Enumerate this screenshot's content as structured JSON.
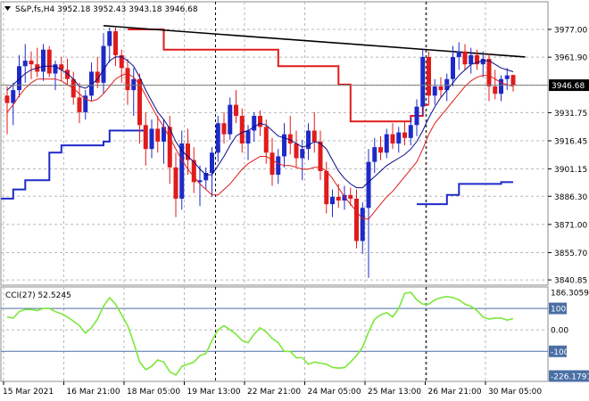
{
  "window": {
    "symbol_line": "S&P,fs,H4  3952.18 3952.43 3943.18 3946.68",
    "dropdown_icon": "triangle-down-icon"
  },
  "colors": {
    "bull": "#1e2ac8",
    "bear": "#e01b1b",
    "doji": "#12a512",
    "ma_fast": "#0a0a8c",
    "ma_slow": "#e01b1b",
    "step_red": "#e01b1b",
    "step_blue": "#1e2ac8",
    "trendline": "#000000",
    "cci": "#7be83a",
    "grid": "#b8b8b8",
    "price_label_bg": "#000000"
  },
  "chart_data": [
    {
      "type": "candlestick",
      "title": "S&P,fs,H4",
      "ohlc_readout": {
        "open": 3952.18,
        "high": 3952.43,
        "low": 3943.18,
        "close": 3946.68
      },
      "current_price": 3946.68,
      "ylim": [
        3838.0,
        3992.0
      ],
      "y_ticks": [
        3977.0,
        3961.9,
        3946.68,
        3931.75,
        3916.45,
        3901.15,
        3886.3,
        3871.0,
        3855.7,
        3840.85
      ],
      "y_tick_labels": [
        "3977.00",
        "3961.90",
        "3946.68",
        "3931.75",
        "3916.45",
        "3901.15",
        "3886.30",
        "3871.00",
        "3855.70",
        "3840.85"
      ],
      "grid": true,
      "x_labels": [
        "15 Mar 2021",
        "16 Mar 21:00",
        "18 Mar 05:00",
        "19 Mar 13:00",
        "22 Mar 21:00",
        "24 Mar 05:00",
        "25 Mar 13:00",
        "26 Mar 21:00",
        "30 Mar 05:00"
      ],
      "x_label_bars": [
        0,
        10,
        20,
        30,
        40,
        50,
        60,
        70,
        80
      ],
      "separator_bars": [
        34,
        69
      ],
      "candles": [
        [
          3941,
          3946,
          3920,
          3937
        ],
        [
          3937,
          3948,
          3925,
          3944
        ],
        [
          3944,
          3963,
          3940,
          3957
        ],
        [
          3957,
          3969,
          3948,
          3960
        ],
        [
          3960,
          3965,
          3950,
          3958
        ],
        [
          3958,
          3967,
          3951,
          3954
        ],
        [
          3954,
          3969,
          3949,
          3966
        ],
        [
          3966,
          3968,
          3951,
          3953
        ],
        [
          3953,
          3960,
          3944,
          3958
        ],
        [
          3958,
          3962,
          3949,
          3955
        ],
        [
          3955,
          3961,
          3947,
          3950
        ],
        [
          3950,
          3954,
          3936,
          3940
        ],
        [
          3940,
          3948,
          3926,
          3932
        ],
        [
          3932,
          3944,
          3928,
          3941
        ],
        [
          3941,
          3959,
          3938,
          3954
        ],
        [
          3954,
          3962,
          3945,
          3948
        ],
        [
          3948,
          3975,
          3942,
          3968
        ],
        [
          3968,
          3978,
          3959,
          3976
        ],
        [
          3976,
          3978,
          3957,
          3963
        ],
        [
          3963,
          3966,
          3948,
          3956
        ],
        [
          3956,
          3961,
          3936,
          3944
        ],
        [
          3944,
          3956,
          3930,
          3950
        ],
        [
          3950,
          3953,
          3915,
          3925
        ],
        [
          3925,
          3932,
          3903,
          3912
        ],
        [
          3912,
          3928,
          3907,
          3923
        ],
        [
          3923,
          3930,
          3910,
          3916
        ],
        [
          3916,
          3928,
          3904,
          3924
        ],
        [
          3924,
          3930,
          3893,
          3902
        ],
        [
          3902,
          3910,
          3875,
          3885
        ],
        [
          3885,
          3922,
          3879,
          3915
        ],
        [
          3915,
          3923,
          3898,
          3906
        ],
        [
          3906,
          3913,
          3888,
          3894
        ],
        [
          3894,
          3903,
          3881,
          3895
        ],
        [
          3895,
          3902,
          3890,
          3899
        ],
        [
          3899,
          3913,
          3886,
          3910
        ],
        [
          3910,
          3930,
          3905,
          3926
        ],
        [
          3926,
          3932,
          3915,
          3920
        ],
        [
          3920,
          3940,
          3917,
          3936
        ],
        [
          3936,
          3944,
          3926,
          3930
        ],
        [
          3930,
          3934,
          3910,
          3915
        ],
        [
          3915,
          3925,
          3906,
          3922
        ],
        [
          3922,
          3932,
          3916,
          3930
        ],
        [
          3930,
          3933,
          3919,
          3924
        ],
        [
          3924,
          3928,
          3904,
          3910
        ],
        [
          3910,
          3918,
          3892,
          3898
        ],
        [
          3898,
          3912,
          3893,
          3908
        ],
        [
          3908,
          3926,
          3902,
          3920
        ],
        [
          3920,
          3930,
          3909,
          3915
        ],
        [
          3915,
          3922,
          3902,
          3907
        ],
        [
          3907,
          3917,
          3895,
          3912
        ],
        [
          3912,
          3926,
          3906,
          3922
        ],
        [
          3922,
          3932,
          3910,
          3916
        ],
        [
          3916,
          3922,
          3895,
          3900
        ],
        [
          3900,
          3905,
          3877,
          3882
        ],
        [
          3882,
          3890,
          3875,
          3886
        ],
        [
          3886,
          3893,
          3880,
          3884
        ],
        [
          3884,
          3892,
          3879,
          3887
        ],
        [
          3887,
          3891,
          3881,
          3885
        ],
        [
          3885,
          3890,
          3858,
          3862
        ],
        [
          3862,
          3883,
          3855,
          3880
        ],
        [
          3880,
          3912,
          3842,
          3905
        ],
        [
          3905,
          3918,
          3899,
          3913
        ],
        [
          3913,
          3919,
          3906,
          3910
        ],
        [
          3910,
          3923,
          3907,
          3920
        ],
        [
          3920,
          3926,
          3912,
          3915
        ],
        [
          3915,
          3924,
          3910,
          3921
        ],
        [
          3921,
          3927,
          3914,
          3918
        ],
        [
          3918,
          3929,
          3914,
          3925
        ],
        [
          3925,
          3939,
          3919,
          3935
        ],
        [
          3935,
          3966,
          3930,
          3962
        ],
        [
          3962,
          3965,
          3936,
          3941
        ],
        [
          3941,
          3950,
          3936,
          3946
        ],
        [
          3946,
          3951,
          3940,
          3944
        ],
        [
          3944,
          3953,
          3938,
          3950
        ],
        [
          3950,
          3968,
          3946,
          3962
        ],
        [
          3962,
          3970,
          3955,
          3965
        ],
        [
          3965,
          3969,
          3955,
          3958
        ],
        [
          3958,
          3967,
          3953,
          3963
        ],
        [
          3963,
          3966,
          3955,
          3958
        ],
        [
          3958,
          3965,
          3951,
          3961
        ],
        [
          3961,
          3964,
          3938,
          3946
        ],
        [
          3946,
          3955,
          3939,
          3942
        ],
        [
          3942,
          3952,
          3938,
          3950
        ],
        [
          3950,
          3956,
          3944,
          3952
        ],
        [
          3952.18,
          3952.43,
          3943.18,
          3946.68
        ]
      ],
      "series": [
        {
          "name": "",
          "kind": "moving-average-fast",
          "values": [
            3944,
            3947,
            3950,
            3953,
            3955,
            3956,
            3957,
            3957,
            3957,
            3955,
            3953,
            3950,
            3946,
            3945,
            3947,
            3950,
            3955,
            3960,
            3962,
            3962,
            3960,
            3957,
            3951,
            3944,
            3938,
            3932,
            3928,
            3923,
            3916,
            3911,
            3908,
            3905,
            3901,
            3898,
            3898,
            3903,
            3908,
            3914,
            3919,
            3921,
            3922,
            3924,
            3926,
            3925,
            3922,
            3919,
            3918,
            3917,
            3915,
            3913,
            3914,
            3916,
            3915,
            3912,
            3906,
            3900,
            3896,
            3893,
            3891,
            3891,
            3894,
            3897,
            3900,
            3903,
            3905,
            3907,
            3909,
            3912,
            3916,
            3922,
            3929,
            3935,
            3940,
            3944,
            3948,
            3952,
            3955,
            3958,
            3959,
            3960,
            3960,
            3958,
            3956,
            3955,
            3954
          ]
        },
        {
          "name": "",
          "kind": "moving-average-slow",
          "values": [
            3932,
            3936,
            3941,
            3945,
            3948,
            3950,
            3950,
            3950,
            3950,
            3949,
            3947,
            3945,
            3942,
            3939,
            3938,
            3939,
            3942,
            3946,
            3950,
            3952,
            3953,
            3951,
            3947,
            3941,
            3935,
            3929,
            3924,
            3918,
            3912,
            3906,
            3901,
            3897,
            3893,
            3890,
            3887,
            3887,
            3890,
            3893,
            3897,
            3901,
            3904,
            3906,
            3908,
            3908,
            3906,
            3904,
            3903,
            3903,
            3902,
            3901,
            3901,
            3902,
            3902,
            3900,
            3896,
            3891,
            3886,
            3882,
            3878,
            3874,
            3874,
            3878,
            3882,
            3886,
            3889,
            3893,
            3897,
            3901,
            3905,
            3912,
            3920,
            3926,
            3930,
            3934,
            3938,
            3942,
            3946,
            3949,
            3951,
            3952,
            3952,
            3950,
            3948,
            3947,
            3946
          ]
        },
        {
          "name": "",
          "kind": "step-red",
          "points": [
            [
              20,
              3977
            ],
            [
              26,
              3977
            ],
            [
              26,
              3966
            ],
            [
              45,
              3966
            ],
            [
              45,
              3957
            ],
            [
              55,
              3957
            ],
            [
              55,
              3947
            ],
            [
              57,
              3947
            ],
            [
              57,
              3927
            ],
            [
              67,
              3927
            ],
            [
              67,
              3930
            ],
            [
              69,
              3930
            ],
            [
              69,
              3936
            ],
            [
              70,
              3936
            ]
          ]
        },
        {
          "name": "",
          "kind": "step-blue-a",
          "points": [
            [
              -1,
              3885
            ],
            [
              1,
              3885
            ],
            [
              1,
              3890
            ],
            [
              3,
              3890
            ],
            [
              3,
              3895
            ],
            [
              7,
              3895
            ],
            [
              7,
              3910
            ],
            [
              9,
              3910
            ],
            [
              9,
              3914
            ],
            [
              16,
              3914
            ],
            [
              16,
              3916
            ],
            [
              17,
              3916
            ],
            [
              17,
              3922
            ],
            [
              23,
              3922
            ]
          ]
        },
        {
          "name": "",
          "kind": "step-blue-b",
          "points": [
            [
              68,
              3882
            ],
            [
              73,
              3882
            ],
            [
              73,
              3887
            ],
            [
              75,
              3887
            ],
            [
              75,
              3893
            ],
            [
              79,
              3893
            ],
            [
              79,
              3893
            ],
            [
              82,
              3893
            ],
            [
              82,
              3894
            ],
            [
              84,
              3894
            ]
          ]
        },
        {
          "name": "",
          "kind": "trendline",
          "points": [
            [
              16,
              3979
            ],
            [
              86,
              3962
            ]
          ]
        }
      ]
    },
    {
      "type": "line",
      "title": "CCI(27) 52.5245",
      "ylim": [
        -240,
        200
      ],
      "y_tick_labels": [
        "186.3059",
        "100",
        "0.00",
        "-100",
        "-226.1791"
      ],
      "y_tick_values": [
        186.3059,
        100,
        0,
        -100,
        -226.1791
      ],
      "badge_levels": [
        100,
        -100,
        -226.1791
      ],
      "grid": true,
      "series": [
        {
          "name": "",
          "values": [
            60,
            55,
            85,
            95,
            95,
            90,
            100,
            100,
            85,
            75,
            60,
            40,
            20,
            -15,
            10,
            50,
            110,
            150,
            120,
            70,
            20,
            -60,
            -150,
            -185,
            -170,
            -140,
            -150,
            -195,
            -210,
            -170,
            -160,
            -150,
            -120,
            -110,
            -50,
            0,
            20,
            0,
            -20,
            -50,
            -60,
            -20,
            10,
            -10,
            -40,
            -60,
            -100,
            -100,
            -130,
            -130,
            -160,
            -150,
            -155,
            -160,
            -175,
            -178,
            -176,
            -150,
            -120,
            -80,
            -10,
            50,
            70,
            80,
            60,
            100,
            170,
            175,
            140,
            120,
            120,
            140,
            150,
            155,
            150,
            140,
            120,
            110,
            90,
            60,
            50,
            55,
            55,
            45,
            52.5245
          ]
        }
      ]
    }
  ]
}
